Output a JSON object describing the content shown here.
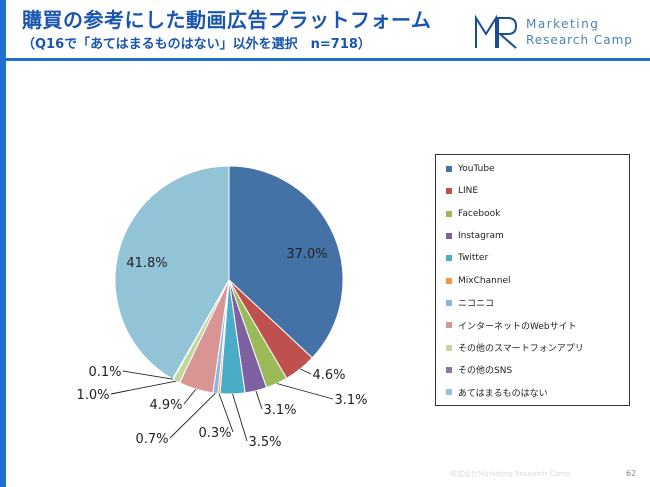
{
  "header": {
    "title": "購買の参考にした動画広告プラットフォーム",
    "subtitle": "（Q16で「あてはまるものはない」以外を選択　n=718）"
  },
  "logo": {
    "line1": "Marketing",
    "line2": "Research Camp",
    "brand_color": "#1a4f8f"
  },
  "accent_color": "#1f6fce",
  "chart_data": {
    "type": "pie",
    "title": "",
    "start_angle_deg": 0,
    "direction": "clockwise",
    "legend_placement": "right",
    "slices": [
      {
        "name": "YouTube",
        "value": 37.0,
        "label": "37.0%",
        "color": "#4472a6"
      },
      {
        "name": "LINE",
        "value": 4.6,
        "label": "4.6%",
        "color": "#c0504d"
      },
      {
        "name": "Facebook",
        "value": 3.1,
        "label": "3.1%",
        "color": "#9bbb59"
      },
      {
        "name": "Instagram",
        "value": 3.1,
        "label": "3.1%",
        "color": "#7f60a0"
      },
      {
        "name": "Twitter",
        "value": 3.5,
        "label": "3.5%",
        "color": "#4aacc6"
      },
      {
        "name": "MixChannel",
        "value": 0.3,
        "label": "0.3%",
        "color": "#f79646"
      },
      {
        "name": "ニコニコ",
        "value": 0.7,
        "label": "0.7%",
        "color": "#8db3e2"
      },
      {
        "name": "インターネットのWebサイト",
        "value": 4.9,
        "label": "4.9%",
        "color": "#d99594"
      },
      {
        "name": "その他のスマートフォンアプリ",
        "value": 1.0,
        "label": "1.0%",
        "color": "#c3d69b"
      },
      {
        "name": "その他のSNS",
        "value": 0.1,
        "label": "0.1%",
        "color": "#8a74b0"
      },
      {
        "name": "あてはまるものはない",
        "value": 41.8,
        "label": "41.8%",
        "color": "#93c3d6"
      }
    ]
  },
  "footer": {
    "copyright": "株式会社Marketing Research Camp",
    "page_number": "62"
  }
}
